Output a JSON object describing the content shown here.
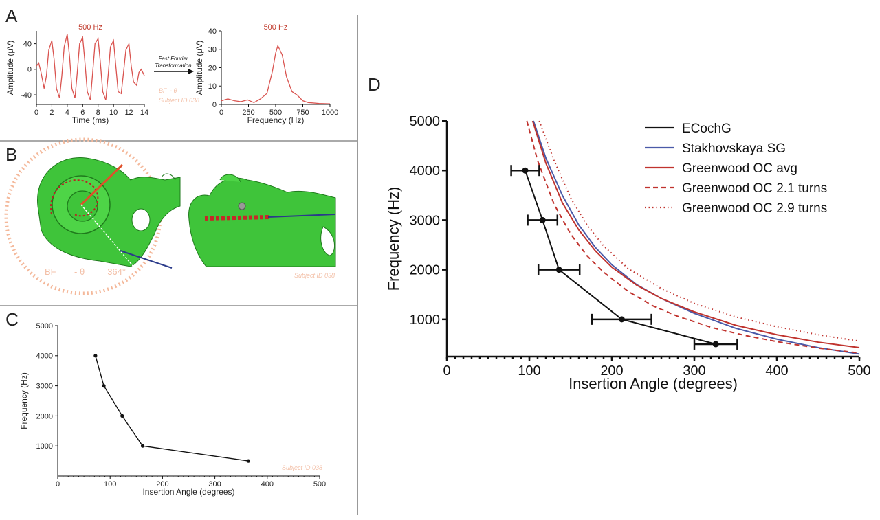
{
  "panels": {
    "A": {
      "label": "A"
    },
    "B": {
      "label": "B"
    },
    "C": {
      "label": "C"
    },
    "D": {
      "label": "D"
    }
  },
  "panelA": {
    "fft_label_line1": "Fast Fourier",
    "fft_label_line2": "Transformation",
    "bf_label_a": "BF",
    "bf_label_b": "- θ",
    "subject_id": "Subject ID 038"
  },
  "panelB": {
    "bf_text_a": "BF",
    "bf_text_b": "- θ",
    "bf_text_c": "= 364°",
    "subject_id": "Subject ID 038"
  },
  "panelC": {
    "subject_id": "Subject ID 038"
  },
  "colors": {
    "ecochg": "#111111",
    "stakhovskaya": "#4a5aa8",
    "greenwood": "#c0332e",
    "trace": "#d9534f",
    "green": "#3fc43a"
  },
  "chart_data": [
    {
      "id": "A-time",
      "type": "line",
      "title": "500 Hz",
      "xlabel": "Time (ms)",
      "ylabel": "Amplitude (µV)",
      "xlim": [
        0,
        14
      ],
      "ylim": [
        -55,
        60
      ],
      "xticks": [
        0,
        2,
        4,
        6,
        8,
        10,
        12,
        14
      ],
      "yticks": [
        -40,
        0,
        40
      ],
      "x": [
        0,
        0.3,
        0.6,
        1,
        1.3,
        1.6,
        2,
        2.3,
        2.6,
        3,
        3.3,
        3.6,
        4,
        4.3,
        4.6,
        5,
        5.3,
        5.6,
        6,
        6.3,
        6.6,
        7,
        7.3,
        7.6,
        8,
        8.3,
        8.6,
        9,
        9.3,
        9.6,
        10,
        10.3,
        10.6,
        11,
        11.3,
        11.6,
        12,
        12.3,
        12.6,
        13,
        13.3,
        13.6,
        14
      ],
      "y": [
        5,
        10,
        -5,
        -30,
        -10,
        30,
        45,
        15,
        -30,
        -45,
        -10,
        35,
        55,
        20,
        -30,
        -45,
        -5,
        40,
        50,
        10,
        -35,
        -48,
        -5,
        40,
        48,
        10,
        -35,
        -48,
        -10,
        35,
        45,
        5,
        -35,
        -38,
        -5,
        30,
        40,
        5,
        -20,
        -25,
        -5,
        0,
        -10
      ]
    },
    {
      "id": "A-freq",
      "type": "line",
      "title": "500 Hz",
      "xlabel": "Frequency (Hz)",
      "ylabel": "Amplitude (µV)",
      "xlim": [
        0,
        1000
      ],
      "ylim": [
        0,
        40
      ],
      "xticks": [
        0,
        250,
        500,
        750,
        1000
      ],
      "yticks": [
        0,
        10,
        20,
        30,
        40
      ],
      "x": [
        0,
        60,
        120,
        180,
        240,
        300,
        360,
        420,
        470,
        500,
        520,
        560,
        600,
        650,
        700,
        750,
        800,
        900,
        1000
      ],
      "y": [
        2,
        3,
        2,
        1.5,
        2.5,
        1,
        3,
        6,
        18,
        28,
        32,
        27,
        15,
        7,
        5,
        2,
        1,
        0.5,
        0.3
      ]
    },
    {
      "id": "C",
      "type": "line",
      "xlabel": "Insertion Angle (degrees)",
      "ylabel": "Frequency (Hz)",
      "xlim": [
        0,
        500
      ],
      "ylim": [
        0,
        5000
      ],
      "xticks": [
        0,
        100,
        200,
        300,
        400,
        500
      ],
      "yticks": [
        1000,
        2000,
        3000,
        4000,
        5000
      ],
      "x": [
        72,
        88,
        123,
        162,
        364
      ],
      "y": [
        4000,
        3000,
        2000,
        1000,
        500
      ]
    },
    {
      "id": "D",
      "type": "line",
      "xlabel": "Insertion Angle (degrees)",
      "ylabel": "Frequency (Hz)",
      "xlim": [
        0,
        500
      ],
      "ylim": [
        250,
        5000
      ],
      "xticks": [
        0,
        100,
        200,
        300,
        400,
        500
      ],
      "yticks": [
        1000,
        2000,
        3000,
        4000,
        5000
      ],
      "legend_position": "top-right",
      "series": [
        {
          "name": "ECochG",
          "style": "solid-markers-errorbars",
          "color": "#111111",
          "x": [
            95,
            116,
            136,
            212,
            326
          ],
          "y": [
            4000,
            3000,
            2000,
            1000,
            500
          ],
          "xerr": [
            17,
            18,
            25,
            36,
            26
          ]
        },
        {
          "name": "Stakhovskaya SG",
          "style": "solid",
          "color": "#4a5aa8",
          "x": [
            105,
            120,
            140,
            160,
            180,
            200,
            230,
            260,
            300,
            350,
            400,
            450,
            500
          ],
          "y": [
            5000,
            4250,
            3500,
            2900,
            2450,
            2100,
            1700,
            1420,
            1120,
            820,
            600,
            430,
            300
          ]
        },
        {
          "name": "Greenwood OC avg",
          "style": "solid",
          "color": "#c0332e",
          "x": [
            104,
            120,
            140,
            160,
            180,
            200,
            230,
            260,
            300,
            350,
            400,
            450,
            500
          ],
          "y": [
            5000,
            4150,
            3350,
            2800,
            2380,
            2050,
            1690,
            1420,
            1150,
            880,
            690,
            540,
            430
          ]
        },
        {
          "name": "Greenwood OC 2.1 turns",
          "style": "dashed",
          "color": "#c0332e",
          "x": [
            97,
            110,
            130,
            150,
            170,
            190,
            220,
            250,
            280,
            320,
            360,
            400,
            450,
            500
          ],
          "y": [
            5000,
            4200,
            3320,
            2720,
            2280,
            1950,
            1560,
            1270,
            1060,
            840,
            680,
            550,
            420,
            320
          ]
        },
        {
          "name": "Greenwood OC 2.9 turns",
          "style": "dotted",
          "color": "#c0332e",
          "x": [
            112,
            130,
            150,
            170,
            190,
            220,
            260,
            300,
            350,
            400,
            450,
            500
          ],
          "y": [
            5000,
            4200,
            3450,
            2900,
            2480,
            2020,
            1620,
            1320,
            1050,
            850,
            690,
            560
          ]
        }
      ]
    }
  ]
}
